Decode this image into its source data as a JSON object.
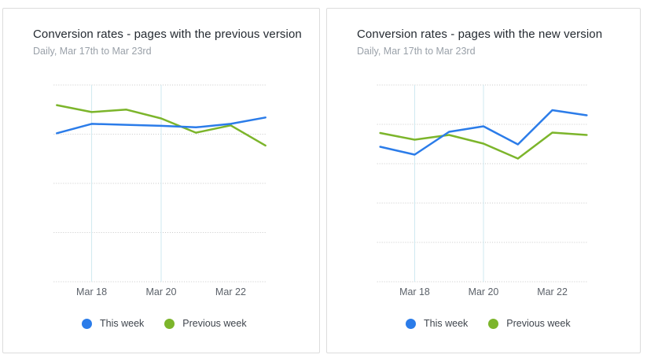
{
  "colors": {
    "this_week": "#2b7ce9",
    "previous_week": "#7cb52b",
    "h_gridline": "#c8c8c8",
    "v_gridline": "#cfe9f0",
    "card_border": "#dcdcdc",
    "title_text": "#242a31",
    "subtitle_text": "#9aa1a9",
    "tick_text": "#5b6169",
    "legend_text": "#3f454d"
  },
  "chart_data": [
    {
      "type": "line",
      "title": "Conversion rates - pages with the previous version",
      "subtitle": "Daily, Mar 17th to Mar 23rd",
      "x": [
        "Mar 17",
        "Mar 18",
        "Mar 19",
        "Mar 20",
        "Mar 21",
        "Mar 22",
        "Mar 23"
      ],
      "x_ticks_shown": [
        "Mar 18",
        "Mar 20",
        "Mar 22"
      ],
      "series": [
        {
          "name": "This week",
          "color": "#2b7ce9",
          "values": [
            3.02,
            3.21,
            3.19,
            3.17,
            3.14,
            3.21,
            3.34
          ]
        },
        {
          "name": "Previous week",
          "color": "#7cb52b",
          "values": [
            3.59,
            3.45,
            3.5,
            3.32,
            3.03,
            3.18,
            2.77
          ]
        }
      ],
      "ylim": [
        0,
        4
      ],
      "y_gridlines": 5,
      "y_axis_labels": "none",
      "vertical_gridlines_at": [
        "Mar 18",
        "Mar 20"
      ],
      "grid": "dotted-horizontal",
      "legend_position": "bottom"
    },
    {
      "type": "line",
      "title": "Conversion rates - pages with the new version",
      "subtitle": "Daily, Mar 17th to Mar 23rd",
      "x": [
        "Mar 17",
        "Mar 18",
        "Mar 19",
        "Mar 20",
        "Mar 21",
        "Mar 22",
        "Mar 23"
      ],
      "x_ticks_shown": [
        "Mar 18",
        "Mar 20",
        "Mar 22"
      ],
      "series": [
        {
          "name": "This week",
          "color": "#2b7ce9",
          "values": [
            3.43,
            3.23,
            3.81,
            3.95,
            3.49,
            4.36,
            4.23
          ]
        },
        {
          "name": "Previous week",
          "color": "#7cb52b",
          "values": [
            3.78,
            3.61,
            3.73,
            3.51,
            3.13,
            3.79,
            3.73
          ]
        }
      ],
      "ylim": [
        0,
        5
      ],
      "y_gridlines": 6,
      "y_axis_labels": "none",
      "vertical_gridlines_at": [
        "Mar 18",
        "Mar 20"
      ],
      "grid": "dotted-horizontal",
      "legend_position": "bottom"
    }
  ]
}
